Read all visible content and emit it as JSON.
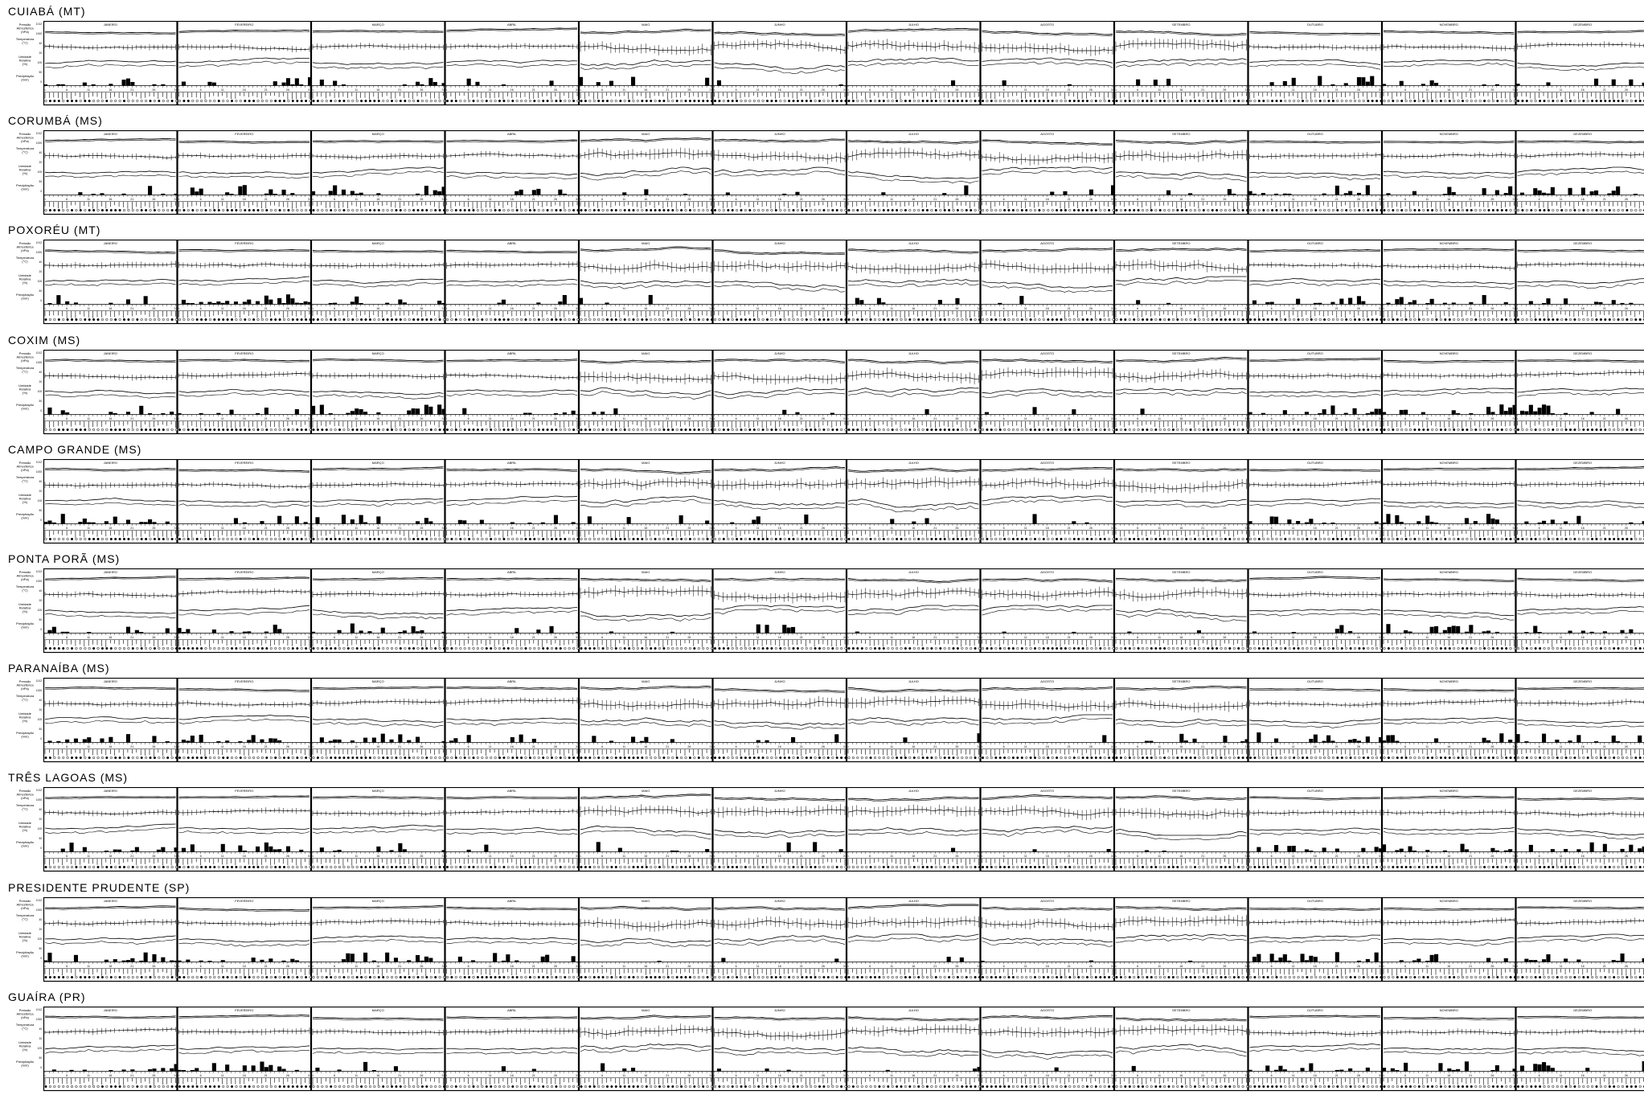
{
  "chart_data": {
    "type": "line",
    "stations": [
      "CUIABÁ (MT)",
      "CORUMBÁ (MS)",
      "POXORÉU (MT)",
      "COXIM (MS)",
      "CAMPO GRANDE (MS)",
      "PONTA PORÃ (MS)",
      "PARANAÍBA (MS)",
      "TRÊS LAGOAS (MS)",
      "PRESIDENTE PRUDENTE (SP)",
      "GUAÍRA (PR)"
    ],
    "months": [
      "JANEIRO",
      "FEVEREIRO",
      "MARÇO",
      "ABRIL",
      "MAIO",
      "JUNHO",
      "JULHO",
      "AGOSTO",
      "SETEMBRO",
      "OUTUBRO",
      "NOVEMBRO",
      "DEZEMBRO"
    ],
    "panel_labels": {
      "pressure": [
        "Pressão",
        "Atmosférica",
        "(hPa)"
      ],
      "temperature": [
        "Temperatura",
        "(°C)"
      ],
      "humidity": [
        "Umidade",
        "Relativa",
        "(%)"
      ],
      "precipitation": [
        "Precipitação",
        "(mm)"
      ]
    },
    "day_ticks": [
      "1",
      "6",
      "11",
      "16",
      "21",
      "26",
      "31"
    ],
    "series": [
      {
        "name": "Pressão Atmosférica",
        "unit": "hPa"
      },
      {
        "name": "Temperatura",
        "unit": "°C"
      },
      {
        "name": "Umidade Relativa",
        "unit": "%"
      },
      {
        "name": "Precipitação",
        "unit": "mm"
      }
    ],
    "colors": {
      "ink": "#000000",
      "background": "#ffffff"
    }
  }
}
